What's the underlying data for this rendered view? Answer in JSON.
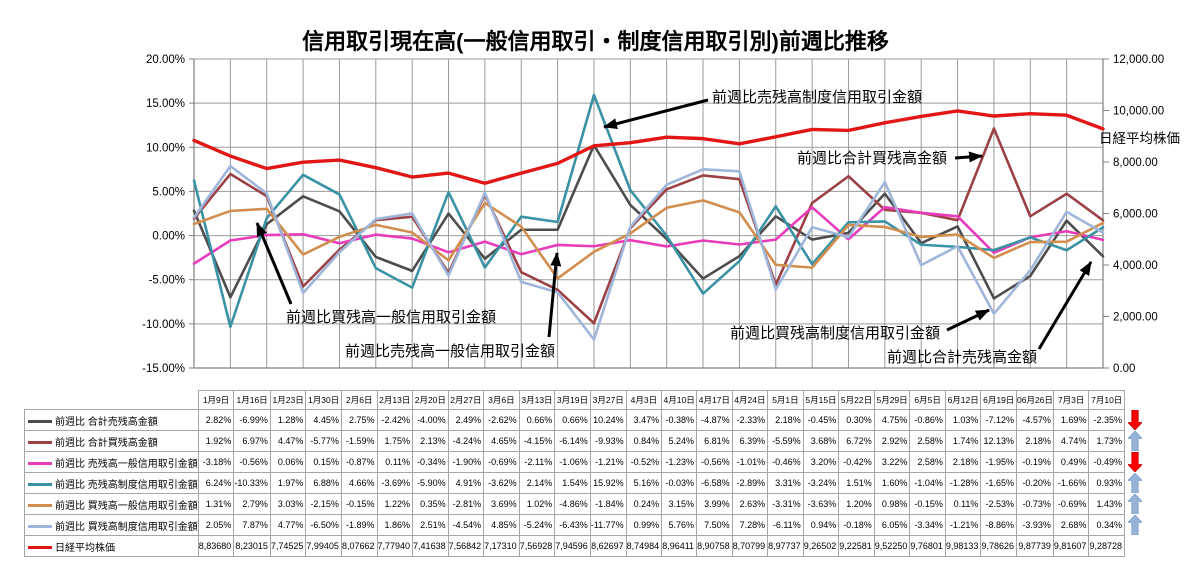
{
  "title": "信用取引現在高(一般信用取引・制度信用取引別)前週比推移",
  "chart_data": {
    "type": "line",
    "categories": [
      "1月9日",
      "1月16日",
      "1月23日",
      "1月30日",
      "2月6日",
      "2月13日",
      "2月20日",
      "2月27日",
      "3月6日",
      "3月13日",
      "3月19日",
      "3月27日",
      "4月3日",
      "4月10日",
      "4月17日",
      "4月24日",
      "5月1日",
      "5月15日",
      "5月22日",
      "5月29日",
      "6月5日",
      "6月12日",
      "6月19日",
      "06月26日",
      "7月3日",
      "7月10日"
    ],
    "series": [
      {
        "name": "前週比 合計売残高金額",
        "color": "#4D4D4D",
        "axis": "left",
        "values": [
          2.82,
          -6.99,
          1.28,
          4.45,
          2.75,
          -2.42,
          -4.0,
          2.49,
          -2.62,
          0.66,
          0.66,
          10.24,
          3.47,
          -0.38,
          -4.87,
          -2.33,
          2.18,
          -0.45,
          0.3,
          4.75,
          -0.86,
          1.03,
          -7.12,
          -4.57,
          1.69,
          -2.35
        ]
      },
      {
        "name": "前週比 合計買残高金額",
        "color": "#9C4247",
        "axis": "left",
        "values": [
          1.92,
          6.97,
          4.47,
          -5.77,
          -1.59,
          1.75,
          2.13,
          -4.24,
          4.65,
          -4.15,
          -6.14,
          -9.93,
          0.84,
          5.24,
          6.81,
          6.39,
          -5.59,
          3.68,
          6.72,
          2.92,
          2.58,
          1.74,
          12.13,
          2.18,
          4.74,
          1.73
        ]
      },
      {
        "name": "前週比 売残高一般信用取引金額",
        "color": "#E83CBB",
        "axis": "left",
        "values": [
          -3.18,
          -0.56,
          0.06,
          0.15,
          -0.87,
          0.11,
          -0.34,
          -1.9,
          -0.69,
          -2.11,
          -1.06,
          -1.21,
          -0.52,
          -1.23,
          -0.56,
          -1.01,
          -0.46,
          3.2,
          -0.42,
          3.22,
          2.58,
          2.18,
          -1.95,
          -0.19,
          0.49,
          -0.49
        ]
      },
      {
        "name": "前週比 売残高制度信用取引金額",
        "color": "#3A92A5",
        "axis": "left",
        "values": [
          6.24,
          -10.33,
          1.97,
          6.88,
          4.66,
          -3.69,
          -5.9,
          4.91,
          -3.62,
          2.14,
          1.54,
          15.92,
          5.16,
          -0.03,
          -6.58,
          -2.89,
          3.31,
          -3.24,
          1.51,
          1.6,
          -1.04,
          -1.28,
          -1.65,
          -0.2,
          -1.66,
          0.93
        ]
      },
      {
        "name": "前週比 買残高一般信用取引金額",
        "color": "#D18E4F",
        "axis": "left",
        "values": [
          1.31,
          2.79,
          3.03,
          -2.15,
          -0.15,
          1.22,
          0.35,
          -2.81,
          3.69,
          1.02,
          -4.86,
          -1.84,
          0.24,
          3.15,
          3.99,
          2.63,
          -3.31,
          -3.63,
          1.2,
          0.98,
          -0.15,
          0.11,
          -2.53,
          -0.73,
          -0.69,
          1.43
        ]
      },
      {
        "name": "前週比 買残高制度信用取引金額",
        "color": "#9FB6DA",
        "axis": "left",
        "values": [
          2.05,
          7.87,
          4.77,
          -6.5,
          -1.89,
          1.86,
          2.51,
          -4.54,
          4.85,
          -5.24,
          -6.43,
          -11.77,
          0.99,
          5.76,
          7.5,
          7.28,
          -6.11,
          0.94,
          -0.18,
          6.05,
          -3.34,
          -1.21,
          -8.86,
          -3.93,
          2.68,
          0.34
        ]
      },
      {
        "name": "日経平均株価",
        "color": "#E31616",
        "axis": "right",
        "values": [
          8836.8,
          8230.15,
          7745.25,
          7994.05,
          8076.62,
          7779.4,
          7416.38,
          7568.42,
          7173.1,
          7569.28,
          7945.96,
          8626.97,
          8749.84,
          8964.11,
          8907.58,
          8707.99,
          8977.37,
          9265.02,
          9225.81,
          9522.5,
          9768.01,
          9981.33,
          9786.26,
          9877.39,
          9816.07,
          9287.28
        ]
      }
    ],
    "left_axis": {
      "min": -15,
      "max": 20,
      "step": 5,
      "labels": [
        "20.00%",
        "15.00%",
        "10.00%",
        "5.00%",
        "0.00%",
        "-5.00%",
        "-10.00%",
        "-15.00%"
      ]
    },
    "right_axis": {
      "min": 0,
      "max": 12000,
      "step": 2000,
      "labels": [
        "12,000.00",
        "10,000.00",
        "8,000.00",
        "6,000.00",
        "4,000.00",
        "2,000.00",
        "0.00"
      ]
    },
    "right_axis_title": "日経平均株価",
    "grid": true,
    "legend_position": "table-below",
    "annotations": [
      {
        "text": "前週比売残高制度信用取引金額"
      },
      {
        "text": "前週比合計買残高金額"
      },
      {
        "text": "前週比買残高一般信用取引金額"
      },
      {
        "text": "前週比売残高一般信用取引金額"
      },
      {
        "text": "前週比買残高制度信用取引金額"
      },
      {
        "text": "前週比合計売残高金額"
      }
    ]
  },
  "table": {
    "legend_labels": [
      "前週比 合計売残高金額",
      "前週比 合計買残高金額",
      "前週比 売残高一般信用取引金額",
      "前週比 売残高制度信用取引金額",
      "前週比 買残高一般信用取引金額",
      "前週比 買残高制度信用取引金額",
      "日経平均株価"
    ],
    "nikkei_display": [
      "8,83680",
      "8,23015",
      "7,74525",
      "7,99405",
      "8,07662",
      "7,77940",
      "7,41638",
      "7,56842",
      "7,17310",
      "7,56928",
      "7,94596",
      "8,62697",
      "8,74984",
      "8,96411",
      "8,90758",
      "8,70799",
      "8,97737",
      "9,26502",
      "9,22581",
      "9,52250",
      "9,76801",
      "9,98133",
      "9,78626",
      "9,87739",
      "9,81607",
      "9,28728"
    ],
    "trend_arrows": [
      "down",
      "up",
      "down",
      "up",
      "up",
      "up",
      "none"
    ],
    "arrow_colors": {
      "up": "#95B3D7",
      "up_edge": "#7C9DC9",
      "down": "#FF0000",
      "down_edge": "#C00000"
    }
  }
}
